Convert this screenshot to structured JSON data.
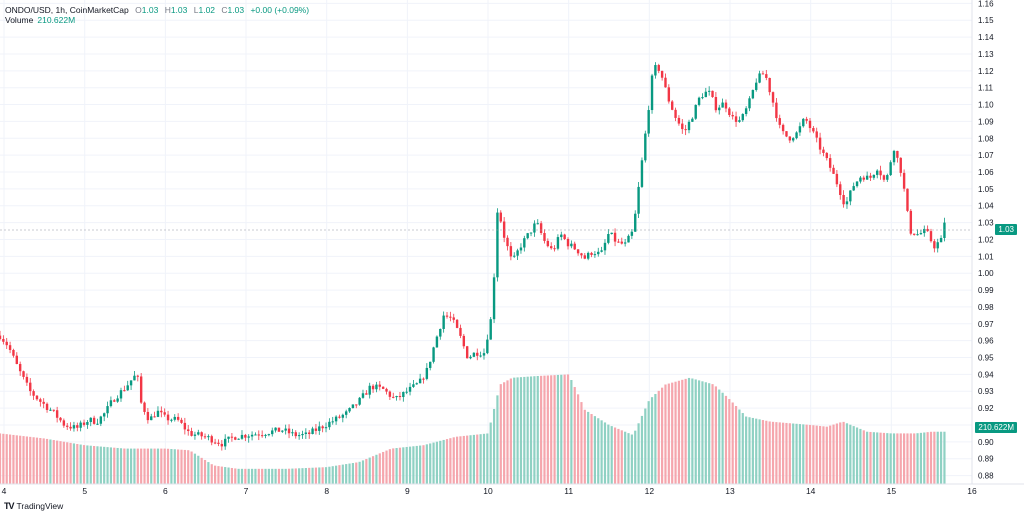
{
  "legend": {
    "symbol": "ONDO/USD, 1h, CoinMarketCap",
    "open_label": "O",
    "open": "1.03",
    "high_label": "H",
    "high": "1.03",
    "low_label": "L",
    "low": "1.02",
    "close_label": "C",
    "close": "1.03",
    "change": "+0.00 (+0.09%)"
  },
  "volume_legend": {
    "label": "Volume",
    "value": "210.622M"
  },
  "badges": {
    "price": "1.03",
    "volume": "210.622M"
  },
  "footer": {
    "logo": "TV",
    "brand": "TradingView"
  },
  "colors": {
    "up": "#089981",
    "down": "#f23645",
    "vol_up": "#8fd1c3",
    "vol_down": "#f5a6ad",
    "grid": "#f0f3fa"
  },
  "chart_data": {
    "type": "candlestick",
    "timeframe": "1h",
    "y_ticks": [
      "0.88",
      "0.89",
      "0.90",
      "0.91",
      "0.92",
      "0.93",
      "0.94",
      "0.95",
      "0.96",
      "0.97",
      "0.98",
      "0.99",
      "1.00",
      "1.01",
      "1.02",
      "1.03",
      "1.04",
      "1.05",
      "1.06",
      "1.07",
      "1.08",
      "1.09",
      "1.10",
      "1.11",
      "1.12",
      "1.13",
      "1.14",
      "1.15",
      "1.16"
    ],
    "x_ticks": [
      "4",
      "5",
      "6",
      "7",
      "8",
      "9",
      "10",
      "11",
      "12",
      "13",
      "14",
      "15",
      "16"
    ],
    "ylim": [
      0.875,
      1.162
    ],
    "xlim": [
      3.95,
      16.0
    ],
    "last_price": 1.03,
    "price_path": [
      [
        3.95,
        0.963
      ],
      [
        4.05,
        0.957
      ],
      [
        4.18,
        0.943
      ],
      [
        4.32,
        0.93
      ],
      [
        4.45,
        0.924
      ],
      [
        4.6,
        0.918
      ],
      [
        4.75,
        0.91
      ],
      [
        4.9,
        0.908
      ],
      [
        5.05,
        0.913
      ],
      [
        5.15,
        0.912
      ],
      [
        5.25,
        0.917
      ],
      [
        5.35,
        0.925
      ],
      [
        5.5,
        0.932
      ],
      [
        5.6,
        0.938
      ],
      [
        5.65,
        0.94
      ],
      [
        5.7,
        0.923
      ],
      [
        5.8,
        0.913
      ],
      [
        5.9,
        0.918
      ],
      [
        6.0,
        0.914
      ],
      [
        6.15,
        0.913
      ],
      [
        6.3,
        0.905
      ],
      [
        6.5,
        0.903
      ],
      [
        6.7,
        0.899
      ],
      [
        6.85,
        0.903
      ],
      [
        7.0,
        0.904
      ],
      [
        7.15,
        0.905
      ],
      [
        7.3,
        0.906
      ],
      [
        7.45,
        0.907
      ],
      [
        7.6,
        0.904
      ],
      [
        7.75,
        0.904
      ],
      [
        7.9,
        0.908
      ],
      [
        8.1,
        0.913
      ],
      [
        8.25,
        0.917
      ],
      [
        8.4,
        0.924
      ],
      [
        8.55,
        0.933
      ],
      [
        8.7,
        0.931
      ],
      [
        8.85,
        0.925
      ],
      [
        9.0,
        0.93
      ],
      [
        9.15,
        0.935
      ],
      [
        9.25,
        0.943
      ],
      [
        9.35,
        0.96
      ],
      [
        9.45,
        0.975
      ],
      [
        9.55,
        0.973
      ],
      [
        9.65,
        0.963
      ],
      [
        9.75,
        0.95
      ],
      [
        9.85,
        0.953
      ],
      [
        9.95,
        0.953
      ],
      [
        10.05,
        0.976
      ],
      [
        10.12,
        1.04
      ],
      [
        10.2,
        1.022
      ],
      [
        10.3,
        1.006
      ],
      [
        10.4,
        1.016
      ],
      [
        10.5,
        1.023
      ],
      [
        10.6,
        1.03
      ],
      [
        10.7,
        1.019
      ],
      [
        10.8,
        1.013
      ],
      [
        10.9,
        1.023
      ],
      [
        11.0,
        1.017
      ],
      [
        11.1,
        1.014
      ],
      [
        11.2,
        1.009
      ],
      [
        11.3,
        1.013
      ],
      [
        11.4,
        1.011
      ],
      [
        11.5,
        1.024
      ],
      [
        11.6,
        1.018
      ],
      [
        11.7,
        1.017
      ],
      [
        11.8,
        1.025
      ],
      [
        11.9,
        1.063
      ],
      [
        11.97,
        1.09
      ],
      [
        12.05,
        1.122
      ],
      [
        12.13,
        1.121
      ],
      [
        12.23,
        1.104
      ],
      [
        12.33,
        1.092
      ],
      [
        12.43,
        1.083
      ],
      [
        12.53,
        1.093
      ],
      [
        12.63,
        1.105
      ],
      [
        12.73,
        1.108
      ],
      [
        12.83,
        1.098
      ],
      [
        12.93,
        1.101
      ],
      [
        13.03,
        1.092
      ],
      [
        13.13,
        1.09
      ],
      [
        13.23,
        1.1
      ],
      [
        13.33,
        1.115
      ],
      [
        13.43,
        1.119
      ],
      [
        13.53,
        1.102
      ],
      [
        13.63,
        1.084
      ],
      [
        13.73,
        1.08
      ],
      [
        13.83,
        1.083
      ],
      [
        13.93,
        1.092
      ],
      [
        14.03,
        1.083
      ],
      [
        14.13,
        1.073
      ],
      [
        14.23,
        1.064
      ],
      [
        14.33,
        1.053
      ],
      [
        14.43,
        1.04
      ],
      [
        14.53,
        1.052
      ],
      [
        14.63,
        1.058
      ],
      [
        14.73,
        1.056
      ],
      [
        14.83,
        1.063
      ],
      [
        14.93,
        1.053
      ],
      [
        15.03,
        1.075
      ],
      [
        15.13,
        1.059
      ],
      [
        15.23,
        1.025
      ],
      [
        15.33,
        1.023
      ],
      [
        15.43,
        1.025
      ],
      [
        15.53,
        1.016
      ],
      [
        15.63,
        1.02
      ],
      [
        15.68,
        1.025
      ]
    ],
    "volume_path": [
      [
        3.95,
        0.905
      ],
      [
        4.5,
        0.902
      ],
      [
        5.0,
        0.898
      ],
      [
        5.5,
        0.896
      ],
      [
        6.0,
        0.896
      ],
      [
        6.3,
        0.895
      ],
      [
        6.6,
        0.886
      ],
      [
        6.9,
        0.884
      ],
      [
        7.5,
        0.884
      ],
      [
        8.0,
        0.885
      ],
      [
        8.4,
        0.888
      ],
      [
        8.8,
        0.896
      ],
      [
        9.2,
        0.898
      ],
      [
        9.6,
        0.903
      ],
      [
        10.0,
        0.905
      ],
      [
        10.15,
        0.934
      ],
      [
        10.3,
        0.938
      ],
      [
        10.6,
        0.939
      ],
      [
        11.0,
        0.94
      ],
      [
        11.1,
        0.93
      ],
      [
        11.2,
        0.919
      ],
      [
        11.5,
        0.91
      ],
      [
        11.8,
        0.904
      ],
      [
        12.0,
        0.925
      ],
      [
        12.2,
        0.934
      ],
      [
        12.5,
        0.938
      ],
      [
        12.8,
        0.934
      ],
      [
        13.0,
        0.925
      ],
      [
        13.2,
        0.915
      ],
      [
        13.5,
        0.912
      ],
      [
        14.0,
        0.91
      ],
      [
        14.2,
        0.909
      ],
      [
        14.4,
        0.912
      ],
      [
        14.7,
        0.906
      ],
      [
        15.0,
        0.905
      ],
      [
        15.3,
        0.905
      ],
      [
        15.5,
        0.906
      ],
      [
        15.68,
        0.906
      ]
    ]
  }
}
